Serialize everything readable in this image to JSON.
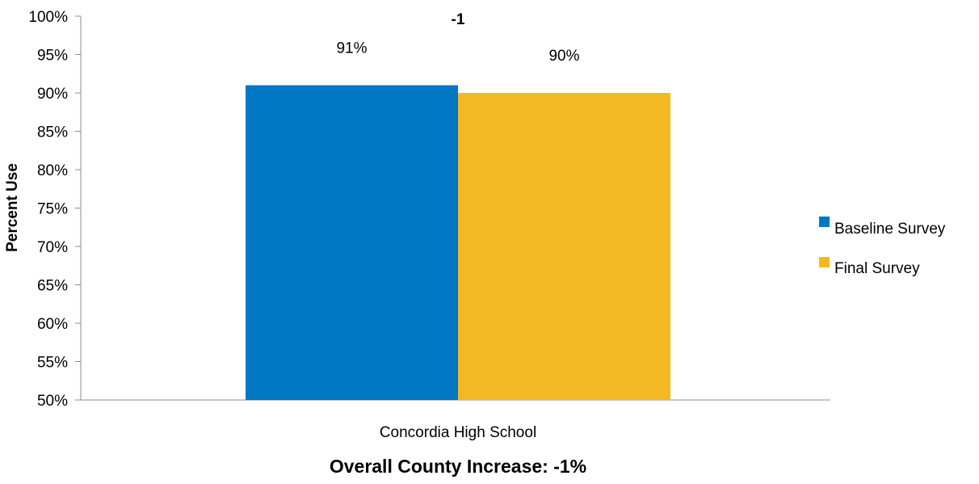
{
  "chart_data": {
    "type": "bar",
    "categories": [
      "Concordia High School"
    ],
    "series": [
      {
        "name": "Baseline Survey",
        "values": [
          91
        ],
        "labels": [
          "91%"
        ],
        "color": "#0277C4"
      },
      {
        "name": "Final Survey",
        "values": [
          90
        ],
        "labels": [
          "90%"
        ],
        "color": "#F4B822"
      }
    ],
    "ylabel": "Percent Use",
    "ylim": [
      50,
      100
    ],
    "yticks": [
      "50%",
      "55%",
      "60%",
      "65%",
      "70%",
      "75%",
      "80%",
      "85%",
      "90%",
      "95%",
      "100%"
    ],
    "difference_label": "-1",
    "footer": "Overall County Increase: -1%",
    "legend_position": "right",
    "grid": false
  }
}
